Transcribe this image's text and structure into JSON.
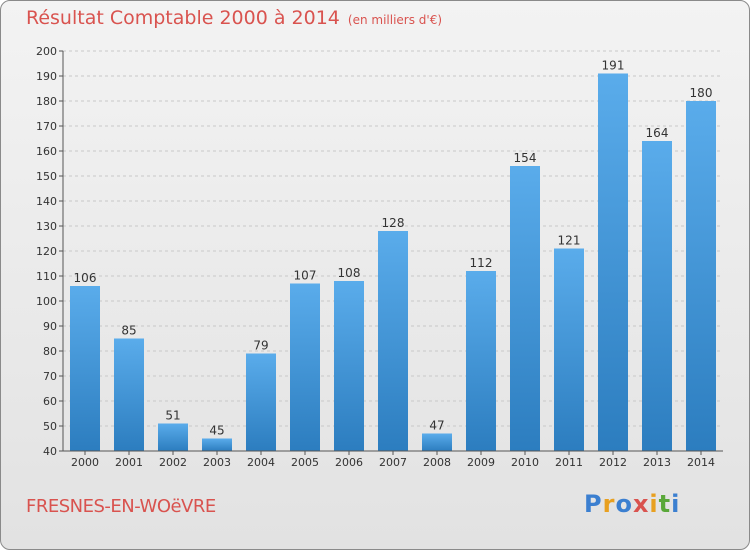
{
  "title": "Résultat Comptable 2000 à 2014",
  "subtitle": "(en milliers d'€)",
  "commune": "FRESNES-EN-WOëVRE",
  "logo": {
    "letters": [
      "P",
      "r",
      "o",
      "x",
      "i",
      "t",
      "i"
    ],
    "colors": [
      "#3b7fd0",
      "#e8a020",
      "#3b7fd0",
      "#d9534f",
      "#e8a020",
      "#5aa83a",
      "#3b7fd0"
    ]
  },
  "colors": {
    "bar": "#4a9fe3",
    "bar_dark": "#2e7fc0",
    "title": "#d9534f",
    "grid": "#c8c8c8"
  },
  "chart_data": {
    "type": "bar",
    "categories": [
      "2000",
      "2001",
      "2002",
      "2003",
      "2004",
      "2005",
      "2006",
      "2007",
      "2008",
      "2009",
      "2010",
      "2011",
      "2012",
      "2013",
      "2014"
    ],
    "values": [
      106,
      85,
      51,
      45,
      79,
      107,
      108,
      128,
      47,
      112,
      154,
      121,
      191,
      164,
      180
    ],
    "ylim": [
      40,
      200
    ],
    "yticks": [
      40,
      50,
      60,
      70,
      80,
      90,
      100,
      110,
      120,
      130,
      140,
      150,
      160,
      170,
      180,
      190,
      200
    ],
    "grid": true,
    "xlabel": "",
    "ylabel": ""
  }
}
